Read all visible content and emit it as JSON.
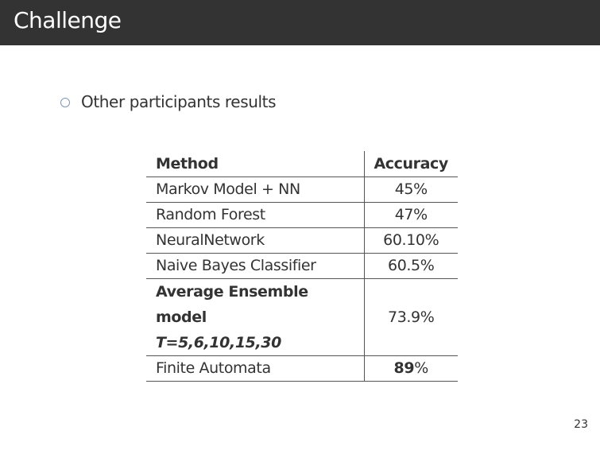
{
  "header": {
    "title": "Challenge"
  },
  "bullet": {
    "text": "Other participants results"
  },
  "table": {
    "headers": {
      "method": "Method",
      "accuracy": "Accuracy"
    },
    "rows": [
      {
        "method": "Markov Model + NN",
        "accuracy": "45%"
      },
      {
        "method": "Random Forest",
        "accuracy": "47%"
      },
      {
        "method": "NeuralNetwork",
        "accuracy": "60.10%"
      },
      {
        "method": "Naive Bayes Classifier",
        "accuracy": "60.5%"
      }
    ],
    "ensemble": {
      "method": "Average Ensemble model",
      "params": "T=5,6,10,15,30",
      "accuracy": "73.9%"
    },
    "last": {
      "method": "Finite Automata",
      "accuracy_bold": "89",
      "accuracy_suffix": "%"
    }
  },
  "footer": {
    "page_number": "23"
  }
}
